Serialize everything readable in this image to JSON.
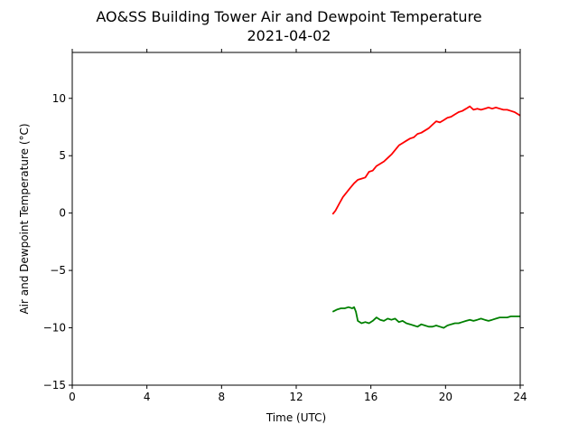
{
  "chart_data": {
    "type": "line",
    "title": "AO&SS Building Tower Air and Dewpoint Temperature",
    "subtitle": "2021-04-02",
    "xlabel": "Time (UTC)",
    "ylabel": "Air and Dewpoint Temperature (°C)",
    "xlim": [
      0,
      24
    ],
    "ylim": [
      -15,
      14
    ],
    "xticks": [
      0,
      4,
      8,
      12,
      16,
      20,
      24
    ],
    "yticks": [
      -15,
      -10,
      -5,
      0,
      5,
      10
    ],
    "grid": false,
    "series": [
      {
        "color": "#ff0000",
        "x": [
          13.95,
          14.1,
          14.3,
          14.5,
          14.7,
          14.9,
          15.1,
          15.3,
          15.5,
          15.7,
          15.9,
          16.1,
          16.3,
          16.5,
          16.7,
          16.9,
          17.1,
          17.3,
          17.5,
          17.7,
          17.9,
          18.1,
          18.3,
          18.5,
          18.7,
          18.9,
          19.1,
          19.3,
          19.5,
          19.7,
          19.9,
          20.1,
          20.3,
          20.5,
          20.7,
          20.9,
          21.1,
          21.3,
          21.5,
          21.7,
          21.9,
          22.1,
          22.3,
          22.5,
          22.7,
          22.9,
          23.1,
          23.3,
          23.5,
          23.7,
          23.9,
          24.0
        ],
        "values": [
          -0.1,
          0.2,
          0.8,
          1.4,
          1.8,
          2.2,
          2.6,
          2.9,
          3.0,
          3.1,
          3.6,
          3.7,
          4.1,
          4.3,
          4.5,
          4.8,
          5.1,
          5.5,
          5.9,
          6.1,
          6.3,
          6.5,
          6.6,
          6.9,
          7.0,
          7.2,
          7.4,
          7.7,
          8.0,
          7.9,
          8.1,
          8.3,
          8.4,
          8.6,
          8.8,
          8.9,
          9.1,
          9.3,
          9.0,
          9.1,
          9.0,
          9.1,
          9.2,
          9.1,
          9.2,
          9.1,
          9.0,
          9.0,
          8.9,
          8.8,
          8.6,
          8.5
        ]
      },
      {
        "color": "#008000",
        "x": [
          13.95,
          14.2,
          14.4,
          14.6,
          14.8,
          15.0,
          15.1,
          15.2,
          15.3,
          15.5,
          15.7,
          15.9,
          16.1,
          16.3,
          16.5,
          16.7,
          16.9,
          17.1,
          17.3,
          17.5,
          17.7,
          17.9,
          18.1,
          18.3,
          18.5,
          18.7,
          18.9,
          19.1,
          19.3,
          19.5,
          19.7,
          19.9,
          20.1,
          20.3,
          20.5,
          20.7,
          20.9,
          21.1,
          21.3,
          21.5,
          21.7,
          21.9,
          22.1,
          22.3,
          22.5,
          22.7,
          22.9,
          23.1,
          23.3,
          23.5,
          23.7,
          23.9,
          24.0
        ],
        "values": [
          -8.6,
          -8.4,
          -8.3,
          -8.3,
          -8.2,
          -8.3,
          -8.2,
          -8.6,
          -9.4,
          -9.6,
          -9.5,
          -9.6,
          -9.4,
          -9.1,
          -9.3,
          -9.4,
          -9.2,
          -9.3,
          -9.2,
          -9.5,
          -9.4,
          -9.6,
          -9.7,
          -9.8,
          -9.9,
          -9.7,
          -9.8,
          -9.9,
          -9.9,
          -9.8,
          -9.9,
          -10.0,
          -9.8,
          -9.7,
          -9.6,
          -9.6,
          -9.5,
          -9.4,
          -9.3,
          -9.4,
          -9.3,
          -9.2,
          -9.3,
          -9.4,
          -9.3,
          -9.2,
          -9.1,
          -9.1,
          -9.1,
          -9.0,
          -9.0,
          -9.0,
          -9.0
        ]
      }
    ]
  }
}
